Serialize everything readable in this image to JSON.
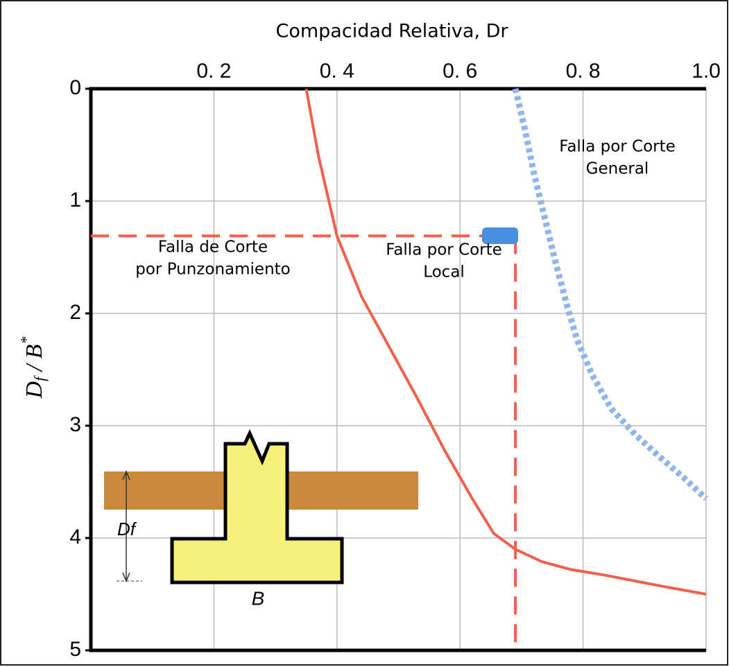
{
  "chart_data": {
    "type": "line",
    "title": "Compacidad Relativa, Dr",
    "y_label": {
      "main": "D",
      "sub": "f",
      "mid": " / B",
      "sup": "*"
    },
    "xlim": [
      0,
      1
    ],
    "ylim": [
      0,
      5
    ],
    "y_inverted": true,
    "x_axis_position": "top",
    "grid": true,
    "xticks": [
      {
        "value": 0.2,
        "label": "0. 2"
      },
      {
        "value": 0.4,
        "label": "0. 4"
      },
      {
        "value": 0.6,
        "label": "0. 6"
      },
      {
        "value": 0.8,
        "label": "0. 8"
      },
      {
        "value": 1.0,
        "label": "1.0"
      }
    ],
    "yticks": [
      0,
      1,
      2,
      3,
      4,
      5
    ],
    "series": [
      {
        "color": "#f0604a",
        "style": "solid",
        "x": [
          0.35,
          0.37,
          0.4,
          0.44,
          0.485,
          0.53,
          0.575,
          0.62,
          0.655,
          0.69,
          0.733,
          0.78,
          0.835,
          0.92,
          1.0
        ],
        "values": [
          0,
          0.6,
          1.31,
          1.85,
          2.3,
          2.75,
          3.22,
          3.65,
          3.96,
          4.1,
          4.21,
          4.28,
          4.33,
          4.42,
          4.5
        ]
      },
      {
        "color": "#8fb4ef",
        "style": "dotted",
        "x": [
          0.69,
          0.705,
          0.72,
          0.74,
          0.756,
          0.775,
          0.79,
          0.815,
          0.846,
          0.885,
          0.925,
          0.965,
          1.0
        ],
        "values": [
          0,
          0.35,
          0.75,
          1.2,
          1.56,
          1.95,
          2.23,
          2.55,
          2.85,
          3.08,
          3.28,
          3.47,
          3.65
        ]
      },
      {
        "color": "#f0604a",
        "style": "dashed",
        "x": [
          0,
          0.69
        ],
        "values": [
          1.31,
          1.31
        ]
      },
      {
        "color": "#f0604a",
        "style": "dashed",
        "x": [
          0.69,
          0.69
        ],
        "values": [
          1.31,
          5
        ]
      }
    ],
    "annotations": [
      {
        "lines": [
          "Falla por Corte",
          "General"
        ]
      },
      {
        "lines": [
          "Falla de Corte",
          "por Punzonamiento"
        ]
      },
      {
        "lines": [
          "Falla por Corte",
          "Local"
        ]
      },
      {
        "lines": [
          "Df"
        ]
      },
      {
        "lines": [
          "B"
        ]
      }
    ]
  }
}
